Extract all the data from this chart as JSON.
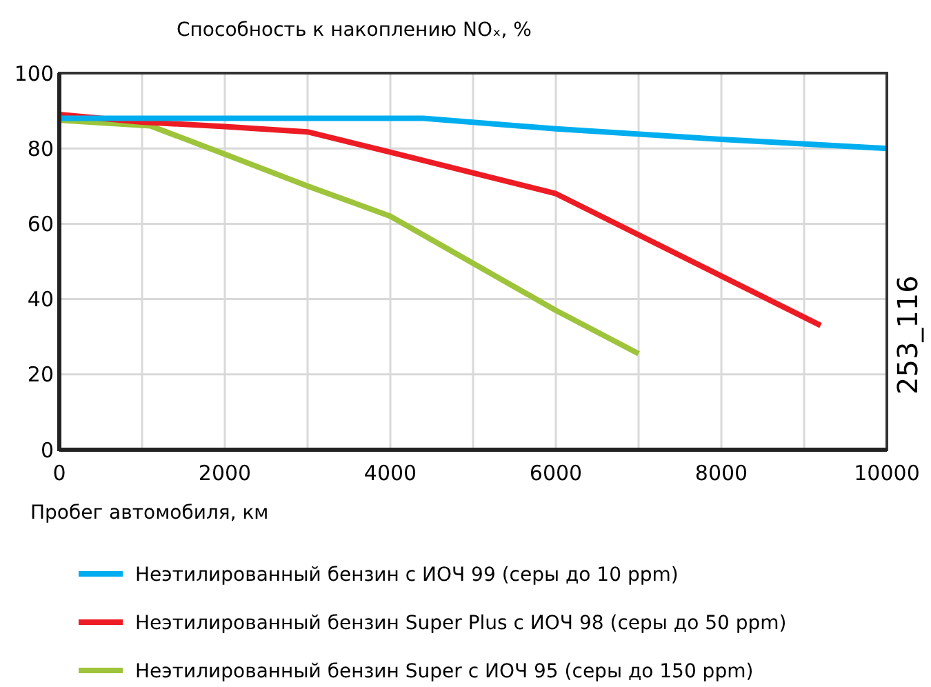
{
  "chart_data": {
    "type": "line",
    "ylabel": "Способность к накоплению NOₓ, %",
    "xlabel": "Пробег автомобиля, км",
    "annotations": [
      "253_116"
    ],
    "xlim": [
      0,
      10000
    ],
    "ylim": [
      0,
      100
    ],
    "xticks": [
      0,
      {
        "value": 1000,
        "label": null
      },
      2000,
      {
        "value": 3000,
        "label": null
      },
      4000,
      {
        "value": 5000,
        "label": null
      },
      6000,
      {
        "value": 7000,
        "label": null
      },
      8000,
      {
        "value": 9000,
        "label": null
      },
      10000
    ],
    "yticks": [
      0,
      20,
      40,
      60,
      80,
      100
    ],
    "grid": true,
    "legend": "bottom",
    "marker": "none",
    "line_style": "solid",
    "series": [
      {
        "name": "Неэтилированный бензин с ИОЧ 99 (серы до 10 ppm)",
        "color": "#00aeef",
        "x": [
          0,
          4400,
          6000,
          8000,
          10000
        ],
        "values": [
          88,
          88,
          85.2,
          82.4,
          80
        ]
      },
      {
        "name": "Неэтилированный бензин Super Plus с ИОЧ 98 (серы до 50 ppm)",
        "color": "#ed1c24",
        "x": [
          0,
          1000,
          2000,
          3000,
          4000,
          6000,
          9200
        ],
        "values": [
          89,
          87,
          85.8,
          84.4,
          79,
          68,
          33
        ]
      },
      {
        "name": "Неэтилированный бензин Super с ИОЧ 95 (серы до 150 ppm)",
        "color": "#9dc43a",
        "x": [
          0,
          1100,
          2000,
          3000,
          4000,
          6000,
          7000
        ],
        "values": [
          87.5,
          86,
          78.5,
          70,
          62,
          37,
          25.5
        ]
      }
    ]
  }
}
